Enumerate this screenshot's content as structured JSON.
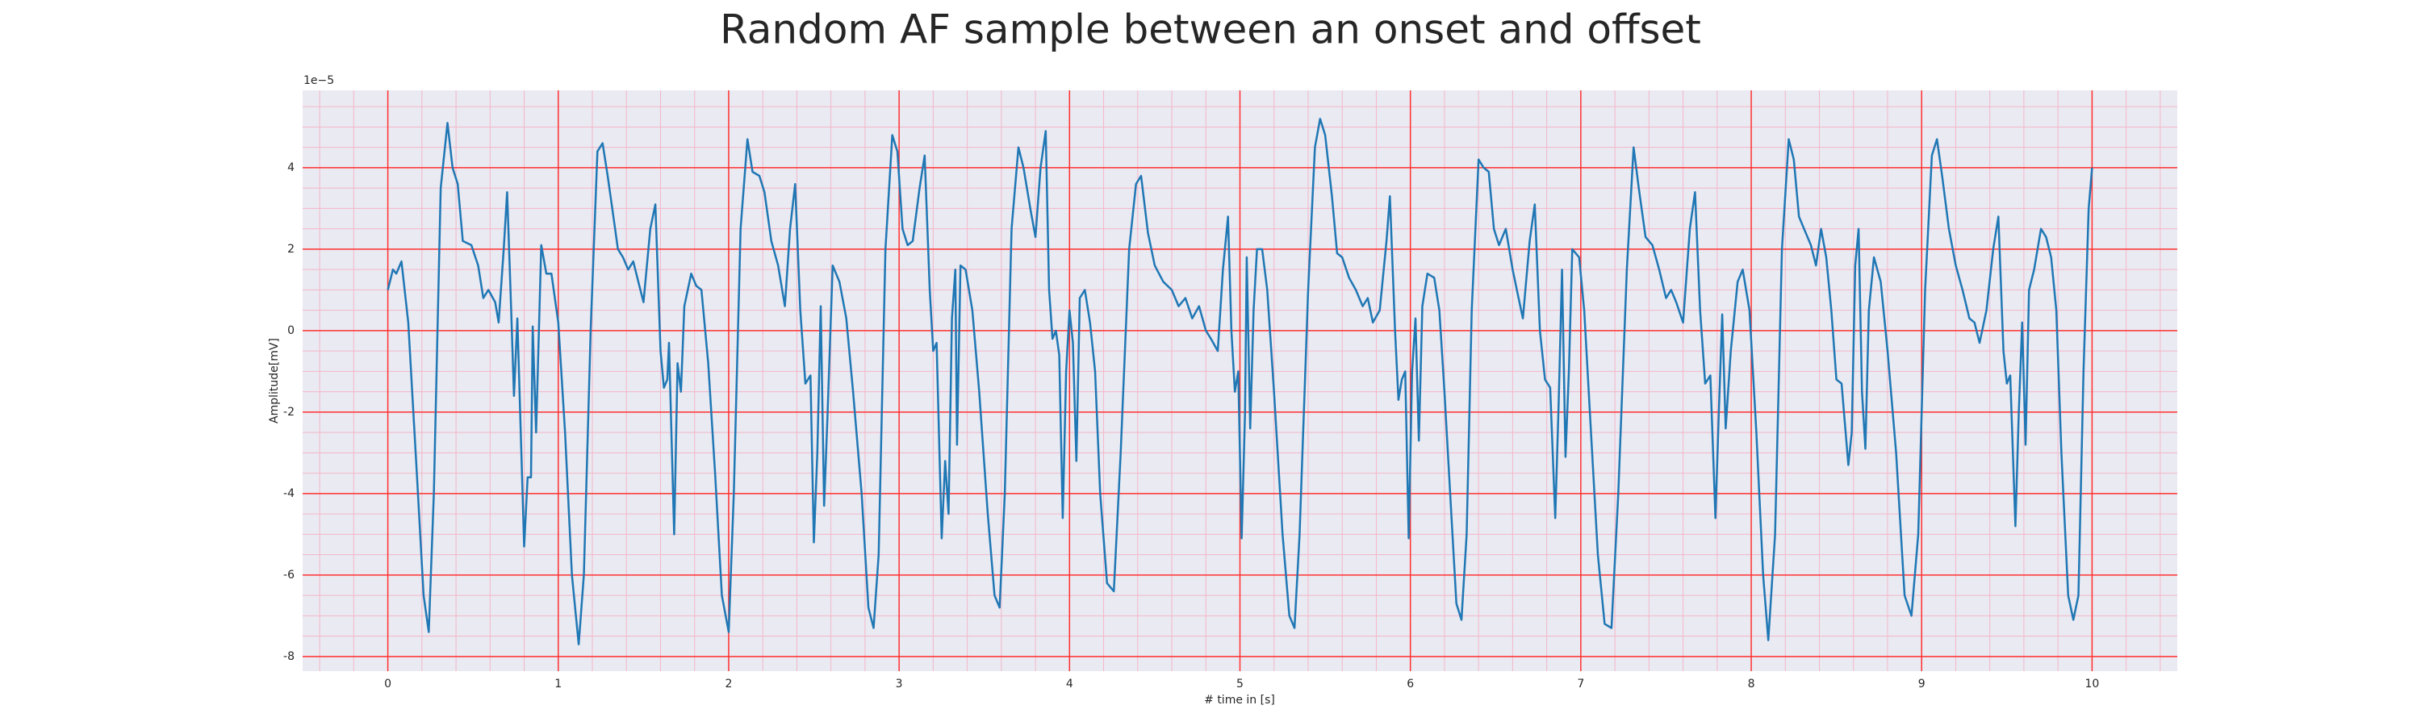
{
  "chart_data": {
    "type": "line",
    "title": "Random AF sample between an onset and offset",
    "xlabel": "# time in [s]",
    "ylabel": "Amplitude[mV]",
    "y_offset_label": "1e−5",
    "xlim": [
      -0.5,
      10.5
    ],
    "ylim": [
      -8.36,
      5.9
    ],
    "xticks": [
      0,
      1,
      2,
      3,
      4,
      5,
      6,
      7,
      8,
      9,
      10
    ],
    "yticks": [
      -8,
      -6,
      -4,
      -2,
      0,
      2,
      4
    ],
    "grid": true,
    "grid_color": "#ff3030",
    "minor_grid": {
      "x_step": 0.2,
      "y_step": 0.5,
      "color": "#f4b6c8"
    },
    "background": "#eaeaf2",
    "series": [
      {
        "color": "#1f77b4",
        "x": [
          0,
          0.03,
          0.05,
          0.08,
          0.12,
          0.17,
          0.21,
          0.24,
          0.27,
          0.31,
          0.35,
          0.38,
          0.41,
          0.44,
          0.49,
          0.53,
          0.56,
          0.59,
          0.63,
          0.65,
          0.68,
          0.7,
          0.72,
          0.74,
          0.76,
          0.8,
          0.82,
          0.84,
          0.85,
          0.87,
          0.9,
          0.93,
          0.96,
          1.0,
          1.04,
          1.08,
          1.12,
          1.15,
          1.19,
          1.23,
          1.26,
          1.29,
          1.32,
          1.35,
          1.38,
          1.41,
          1.44,
          1.47,
          1.5,
          1.54,
          1.57,
          1.6,
          1.62,
          1.64,
          1.65,
          1.68,
          1.7,
          1.72,
          1.74,
          1.78,
          1.81,
          1.84,
          1.88,
          1.92,
          1.96,
          2.0,
          2.03,
          2.07,
          2.11,
          2.14,
          2.18,
          2.21,
          2.25,
          2.29,
          2.33,
          2.36,
          2.39,
          2.42,
          2.45,
          2.48,
          2.5,
          2.52,
          2.54,
          2.56,
          2.58,
          2.61,
          2.65,
          2.69,
          2.73,
          2.78,
          2.82,
          2.85,
          2.88,
          2.92,
          2.96,
          2.99,
          3.02,
          3.05,
          3.08,
          3.12,
          3.15,
          3.18,
          3.2,
          3.22,
          3.25,
          3.27,
          3.29,
          3.31,
          3.33,
          3.34,
          3.36,
          3.39,
          3.43,
          3.47,
          3.52,
          3.56,
          3.59,
          3.62,
          3.66,
          3.7,
          3.73,
          3.77,
          3.8,
          3.83,
          3.86,
          3.88,
          3.9,
          3.92,
          3.94,
          3.96,
          3.98,
          4.0,
          4.02,
          4.04,
          4.06,
          4.09,
          4.12,
          4.15,
          4.18,
          4.22,
          4.26,
          4.3,
          4.35,
          4.39,
          4.42,
          4.46,
          4.5,
          4.55,
          4.6,
          4.64,
          4.68,
          4.72,
          4.76,
          4.8,
          4.83,
          4.87,
          4.9,
          4.93,
          4.95,
          4.97,
          4.99,
          5.01,
          5.03,
          5.04,
          5.06,
          5.08,
          5.1,
          5.13,
          5.16,
          5.2,
          5.25,
          5.29,
          5.32,
          5.35,
          5.4,
          5.44,
          5.47,
          5.5,
          5.54,
          5.57,
          5.6,
          5.64,
          5.68,
          5.72,
          5.75,
          5.78,
          5.82,
          5.86,
          5.88,
          5.91,
          5.93,
          5.95,
          5.97,
          5.99,
          6.01,
          6.03,
          6.05,
          6.07,
          6.1,
          6.14,
          6.17,
          6.2,
          6.24,
          6.27,
          6.3,
          6.33,
          6.36,
          6.4,
          6.43,
          6.46,
          6.49,
          6.52,
          6.56,
          6.6,
          6.63,
          6.66,
          6.7,
          6.73,
          6.76,
          6.79,
          6.82,
          6.85,
          6.87,
          6.89,
          6.91,
          6.93,
          6.95,
          6.99,
          7.02,
          7.06,
          7.1,
          7.14,
          7.18,
          7.22,
          7.27,
          7.31,
          7.34,
          7.38,
          7.42,
          7.46,
          7.5,
          7.53,
          7.56,
          7.6,
          7.64,
          7.67,
          7.7,
          7.73,
          7.76,
          7.79,
          7.81,
          7.83,
          7.85,
          7.88,
          7.92,
          7.95,
          7.99,
          8.03,
          8.07,
          8.1,
          8.14,
          8.18,
          8.22,
          8.25,
          8.28,
          8.31,
          8.35,
          8.38,
          8.41,
          8.44,
          8.47,
          8.5,
          8.53,
          8.55,
          8.57,
          8.59,
          8.61,
          8.63,
          8.65,
          8.67,
          8.69,
          8.72,
          8.76,
          8.8,
          8.85,
          8.9,
          8.94,
          8.98,
          9.02,
          9.06,
          9.09,
          9.12,
          9.16,
          9.2,
          9.24,
          9.28,
          9.31,
          9.34,
          9.38,
          9.42,
          9.45,
          9.48,
          9.5,
          9.52,
          9.55,
          9.57,
          9.59,
          9.61,
          9.63,
          9.66,
          9.7,
          9.73,
          9.76,
          9.79,
          9.82,
          9.86,
          9.89,
          9.92,
          9.95,
          9.98,
          10.0
        ],
        "values": [
          1.0,
          1.5,
          1.4,
          1.7,
          0.2,
          -3.5,
          -6.5,
          -7.4,
          -4,
          3.5,
          5.1,
          4.0,
          3.6,
          2.2,
          2.1,
          1.6,
          0.8,
          1.0,
          0.7,
          0.2,
          2.0,
          3.4,
          1.0,
          -1.6,
          0.3,
          -5.3,
          -3.6,
          -3.6,
          0.1,
          -2.5,
          2.1,
          1.4,
          1.4,
          0.2,
          -2.5,
          -6,
          -7.7,
          -6,
          0,
          4.4,
          4.6,
          3.8,
          2.9,
          2.0,
          1.8,
          1.5,
          1.7,
          1.2,
          0.7,
          2.5,
          3.1,
          -0.5,
          -1.4,
          -1.2,
          -0.3,
          -5.0,
          -0.8,
          -1.5,
          0.6,
          1.4,
          1.1,
          1.0,
          -0.8,
          -3.5,
          -6.5,
          -7.4,
          -4,
          2.5,
          4.7,
          3.9,
          3.8,
          3.4,
          2.2,
          1.6,
          0.6,
          2.5,
          3.6,
          0.5,
          -1.3,
          -1.1,
          -5.2,
          -3,
          0.6,
          -4.3,
          -2.1,
          1.6,
          1.2,
          0.3,
          -1.5,
          -4,
          -6.8,
          -7.3,
          -5.5,
          2,
          4.8,
          4.4,
          2.5,
          2.1,
          2.2,
          3.5,
          4.3,
          1,
          -0.5,
          -0.3,
          -5.1,
          -3.2,
          -4.5,
          0.3,
          1.5,
          -2.8,
          1.6,
          1.5,
          0.5,
          -1.5,
          -4.5,
          -6.5,
          -6.8,
          -4,
          2.5,
          4.5,
          4.0,
          3.0,
          2.3,
          4.0,
          4.9,
          1,
          -0.2,
          0,
          -0.6,
          -4.6,
          -1,
          0.5,
          -0.3,
          -3.2,
          0.8,
          1.0,
          0.2,
          -1,
          -4,
          -6.2,
          -6.4,
          -3,
          2,
          3.6,
          3.8,
          2.4,
          1.6,
          1.2,
          1.0,
          0.6,
          0.8,
          0.3,
          0.6,
          0,
          -0.2,
          -0.5,
          1.5,
          2.8,
          0,
          -1.5,
          -1.0,
          -5.1,
          -2,
          1.8,
          -2.4,
          0.5,
          2.0,
          2.0,
          1.0,
          -1.5,
          -5,
          -7.0,
          -7.3,
          -5,
          1,
          4.5,
          5.2,
          4.8,
          3.3,
          1.9,
          1.8,
          1.3,
          1.0,
          0.6,
          0.8,
          0.2,
          0.5,
          2.2,
          3.3,
          0,
          -1.7,
          -1.2,
          -1.0,
          -5.1,
          -1,
          0.3,
          -2.7,
          0.6,
          1.4,
          1.3,
          0.5,
          -1.5,
          -4.5,
          -6.7,
          -7.1,
          -5,
          0.5,
          4.2,
          4.0,
          3.9,
          2.5,
          2.1,
          2.5,
          1.5,
          0.9,
          0.3,
          2.2,
          3.1,
          0,
          -1.2,
          -1.4,
          -4.6,
          -1.8,
          1.5,
          -3.1,
          -1,
          2.0,
          1.8,
          0.5,
          -2.5,
          -5.5,
          -7.2,
          -7.3,
          -4,
          1.5,
          4.5,
          3.5,
          2.3,
          2.1,
          1.5,
          0.8,
          1.0,
          0.7,
          0.2,
          2.5,
          3.4,
          0.5,
          -1.3,
          -1.1,
          -4.6,
          -2,
          0.4,
          -2.4,
          -0.5,
          1.2,
          1.5,
          0.5,
          -2.5,
          -6,
          -7.6,
          -5,
          2,
          4.7,
          4.2,
          2.8,
          2.5,
          2.1,
          1.6,
          2.5,
          1.8,
          0.5,
          -1.2,
          -1.3,
          -2.3,
          -3.3,
          -2.5,
          1.6,
          2.5,
          -1.5,
          -2.9,
          0.5,
          1.8,
          1.2,
          -0.5,
          -3,
          -6.5,
          -7.0,
          -5,
          1,
          4.3,
          4.7,
          3.8,
          2.5,
          1.6,
          1.0,
          0.3,
          0.2,
          -0.3,
          0.5,
          2.0,
          2.8,
          -0.5,
          -1.3,
          -1.1,
          -4.8,
          -2,
          0.2,
          -2.8,
          1,
          1.5,
          2.5,
          2.3,
          1.8,
          0.5,
          -3,
          -6.5,
          -7.1,
          -6.5,
          -1,
          3,
          4.0
        ]
      }
    ]
  }
}
